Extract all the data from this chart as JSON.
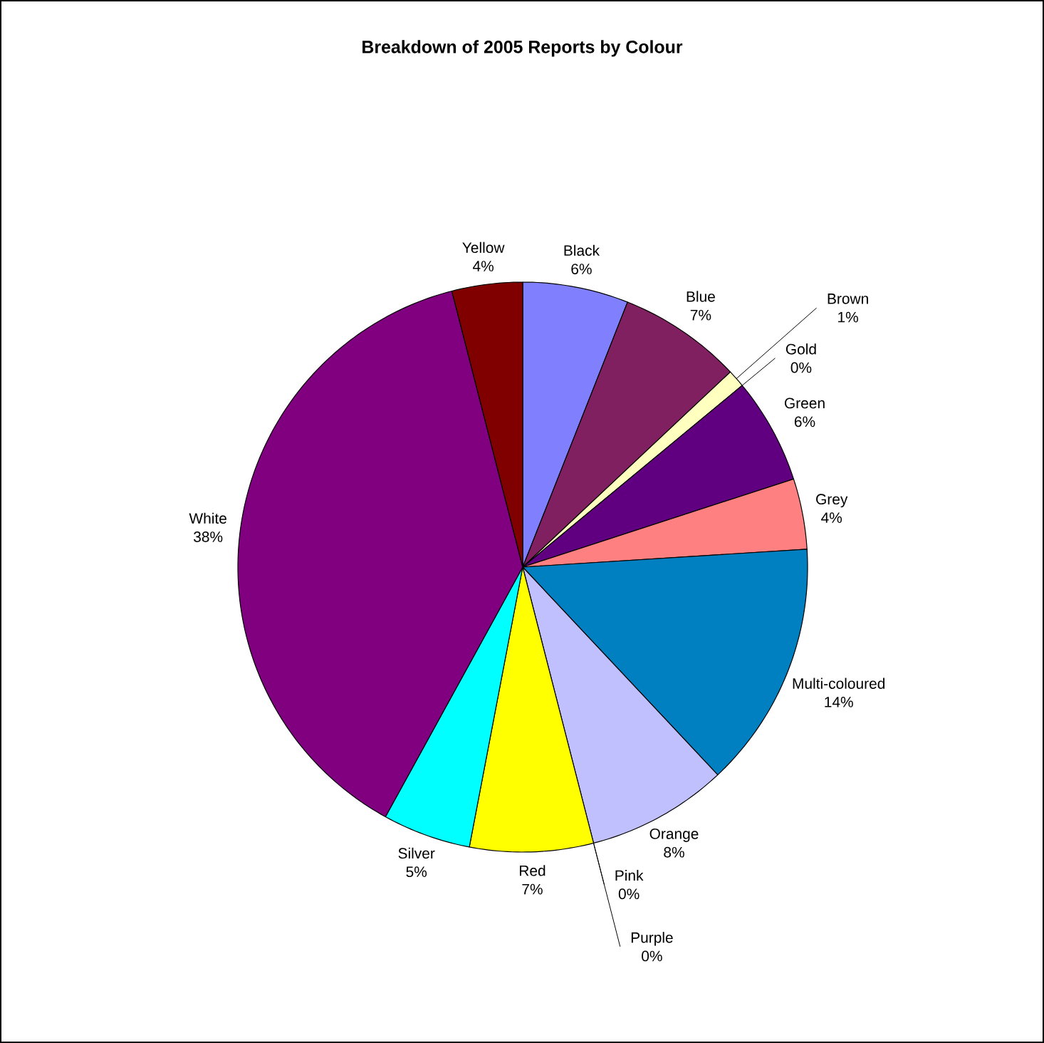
{
  "chart_data": {
    "type": "pie",
    "title": "Breakdown of 2005 Reports by Colour",
    "categories": [
      "Black",
      "Blue",
      "Brown",
      "Gold",
      "Green",
      "Grey",
      "Multi-coloured",
      "Orange",
      "Pink",
      "Purple",
      "Red",
      "Silver",
      "White",
      "Yellow"
    ],
    "values": [
      6,
      7,
      1,
      0,
      6,
      4,
      14,
      8,
      0,
      0,
      7,
      5,
      38,
      4
    ],
    "value_labels": [
      "6%",
      "7%",
      "1%",
      "0%",
      "6%",
      "4%",
      "14%",
      "8%",
      "0%",
      "0%",
      "7%",
      "5%",
      "38%",
      "4%"
    ],
    "colors": [
      "#8080ff",
      "#802060",
      "#ffffc0",
      "#a0e0e0",
      "#600080",
      "#ff8080",
      "#0080c0",
      "#c0c0ff",
      "#000080",
      "#ff00ff",
      "#ffff00",
      "#00ffff",
      "#800080",
      "#800000"
    ]
  }
}
